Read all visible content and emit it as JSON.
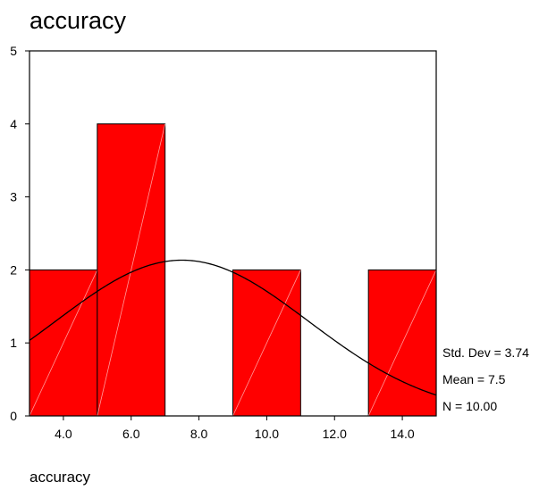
{
  "chart_data": {
    "type": "bar",
    "title": "accuracy",
    "xlabel": "accuracy",
    "ylabel": "",
    "bins": [
      {
        "x0": 3,
        "x1": 5,
        "count": 2
      },
      {
        "x0": 5,
        "x1": 7,
        "count": 4
      },
      {
        "x0": 7,
        "x1": 9,
        "count": 0
      },
      {
        "x0": 9,
        "x1": 11,
        "count": 2
      },
      {
        "x0": 11,
        "x1": 13,
        "count": 0
      },
      {
        "x0": 13,
        "x1": 15,
        "count": 2
      }
    ],
    "xlim": [
      3,
      15
    ],
    "ylim": [
      0,
      5
    ],
    "x_ticks": [
      "4.0",
      "6.0",
      "8.0",
      "10.0",
      "12.0",
      "14.0"
    ],
    "y_ticks": [
      "0",
      "1",
      "2",
      "3",
      "4",
      "5"
    ],
    "normal_curve": {
      "mean": 7.5,
      "std_dev": 3.74,
      "n": 10,
      "bin_width": 2
    },
    "stats": {
      "std_dev": "Std. Dev = 3.74",
      "mean": "Mean = 7.5",
      "n": "N = 10.00"
    },
    "colors": {
      "bar_fill": "#ff0000",
      "bar_stroke": "#000000",
      "curve": "#000000",
      "frame": "#000000"
    },
    "grid": false
  }
}
